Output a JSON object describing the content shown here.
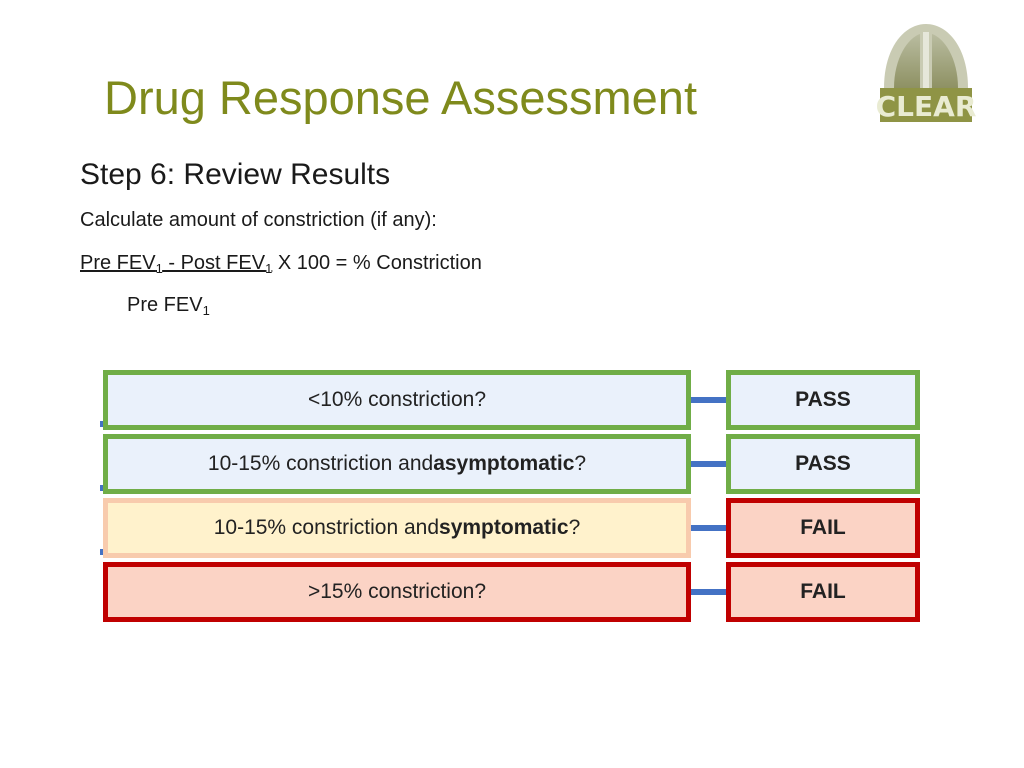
{
  "title": "Drug Response Assessment",
  "logo_text": "CLEAR",
  "subtitle": "Step 6: Review Results",
  "instruction": "Calculate amount of constriction (if any):",
  "formula": {
    "pre1": "Pre FEV",
    "sub1": "1",
    "minus": " - Post FEV",
    "sub2": "1",
    "rest": " X 100 = % Constriction",
    "den": "Pre FEV",
    "den_sub": "1"
  },
  "rows": [
    {
      "q_pre": "<10% constriction?",
      "q_bold": "",
      "q_post": "",
      "result": "PASS"
    },
    {
      "q_pre": "10-15% constriction and ",
      "q_bold": "asymptomatic",
      "q_post": "?",
      "result": "PASS"
    },
    {
      "q_pre": "10-15% constriction and ",
      "q_bold": "symptomatic",
      "q_post": "?",
      "result": "FAIL"
    },
    {
      "q_pre": ">15% constriction?",
      "q_bold": "",
      "q_post": "",
      "result": "FAIL"
    }
  ],
  "colors": {
    "title": "#7f8a1c",
    "pass_border": "#70ad47",
    "fail_border": "#c00000",
    "connector": "#4472c4"
  }
}
